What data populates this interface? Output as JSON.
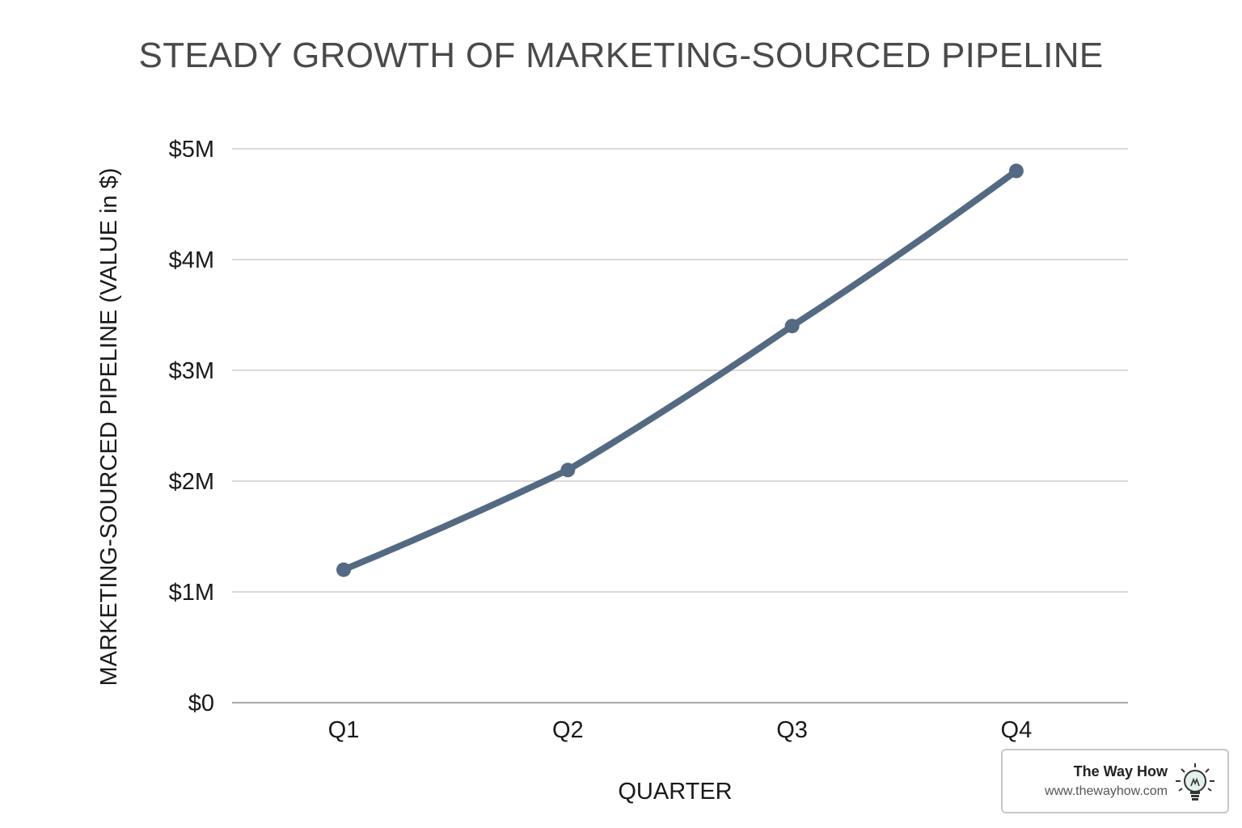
{
  "chart_data": {
    "type": "line",
    "title": "STEADY GROWTH OF MARKETING-SOURCED PIPELINE",
    "xlabel": "QUARTER",
    "ylabel": "MARKETING-SOURCED PIPELINE (VALUE in $)",
    "categories": [
      "Q1",
      "Q2",
      "Q3",
      "Q4"
    ],
    "series": [
      {
        "values": [
          1.2,
          2.1,
          3.4,
          4.8
        ]
      }
    ],
    "ylim": [
      0,
      5
    ],
    "yticks": [
      0,
      1,
      2,
      3,
      4,
      5
    ],
    "ytick_labels": [
      "$0",
      "$1M",
      "$2M",
      "$3M",
      "$4M",
      "$5M"
    ],
    "grid": true,
    "line_color": "#546a83",
    "grid_color": "#d9d9d9"
  },
  "watermark": {
    "name": "The Way How",
    "url": "www.thewayhow.com",
    "icon": "lightbulb-icon"
  }
}
